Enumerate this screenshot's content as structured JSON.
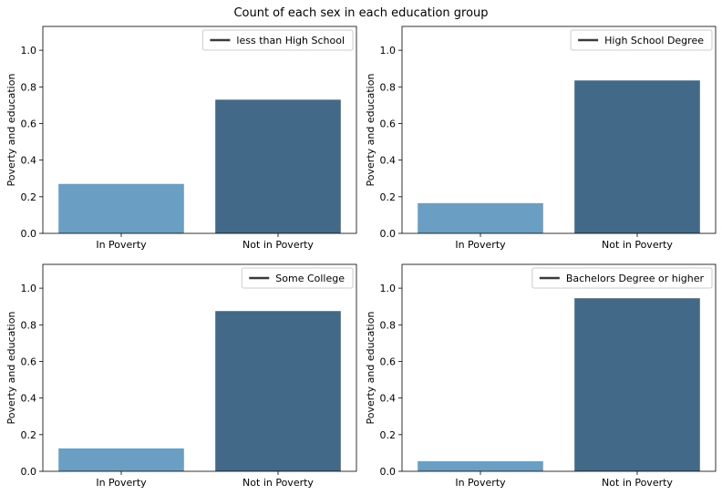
{
  "figure": {
    "title": "Count of each sex in each education group"
  },
  "chart_data": [
    {
      "type": "bar",
      "categories": [
        "In Poverty",
        "Not in Poverty"
      ],
      "values": [
        0.27,
        0.73
      ],
      "ylabel": "Poverty and education",
      "ylim": [
        0,
        1.13
      ],
      "yticks": [
        "0.0",
        "0.2",
        "0.4",
        "0.6",
        "0.8",
        "1.0"
      ],
      "legend": "less than High School",
      "legend_position": "top-right",
      "colors": [
        "#6a9ec2",
        "#426987"
      ]
    },
    {
      "type": "bar",
      "categories": [
        "In Poverty",
        "Not in Poverty"
      ],
      "values": [
        0.165,
        0.835
      ],
      "ylabel": "Poverty and education",
      "ylim": [
        0,
        1.13
      ],
      "yticks": [
        "0.0",
        "0.2",
        "0.4",
        "0.6",
        "0.8",
        "1.0"
      ],
      "legend": "High School Degree",
      "legend_position": "top-right",
      "colors": [
        "#6a9ec2",
        "#426987"
      ]
    },
    {
      "type": "bar",
      "categories": [
        "In Poverty",
        "Not in Poverty"
      ],
      "values": [
        0.125,
        0.875
      ],
      "ylabel": "Poverty and education",
      "ylim": [
        0,
        1.13
      ],
      "yticks": [
        "0.0",
        "0.2",
        "0.4",
        "0.6",
        "0.8",
        "1.0"
      ],
      "legend": "Some College",
      "legend_position": "top-right",
      "colors": [
        "#6a9ec2",
        "#426987"
      ]
    },
    {
      "type": "bar",
      "categories": [
        "In Poverty",
        "Not in Poverty"
      ],
      "values": [
        0.055,
        0.945
      ],
      "ylabel": "Poverty and education",
      "ylim": [
        0,
        1.13
      ],
      "yticks": [
        "0.0",
        "0.2",
        "0.4",
        "0.6",
        "0.8",
        "1.0"
      ],
      "legend": "Bachelors Degree or higher",
      "legend_position": "top-right",
      "colors": [
        "#6a9ec2",
        "#426987"
      ]
    }
  ]
}
